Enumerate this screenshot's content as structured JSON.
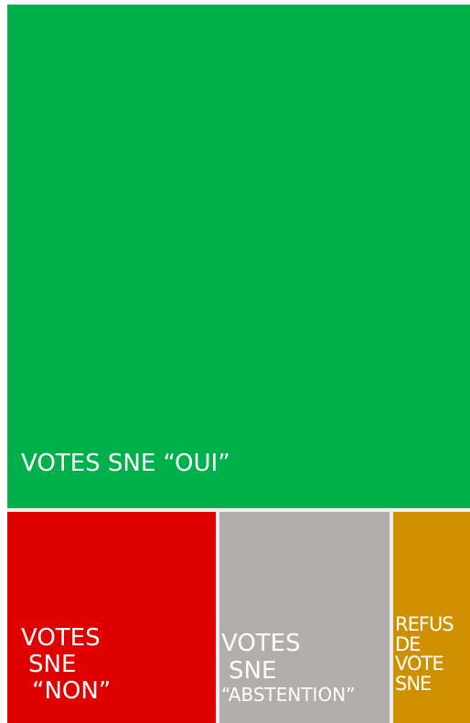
{
  "chart_data": {
    "type": "treemap",
    "title": "",
    "series": [
      {
        "name": "VOTES SNE “OUI”",
        "value": 69,
        "color": "#00b04a",
        "label_lines": [
          "VOTES SNE “OUI”"
        ]
      },
      {
        "name": "VOTES SNE “NON”",
        "value": 13.5,
        "color": "#e00000",
        "label_lines": [
          "VOTES",
          "SNE",
          "“NON”"
        ]
      },
      {
        "name": "VOTES SNE “ABSTENTION”",
        "value": 11,
        "color": "#b1aeac",
        "label_lines": [
          "VOTES",
          "SNE",
          "“ABSTENTION”"
        ]
      },
      {
        "name": "REFUS DE VOTE SNE",
        "value": 5,
        "color": "#cf9000",
        "label_lines": [
          "REFUS",
          "DE",
          "VOTE",
          "SNE"
        ]
      }
    ]
  }
}
